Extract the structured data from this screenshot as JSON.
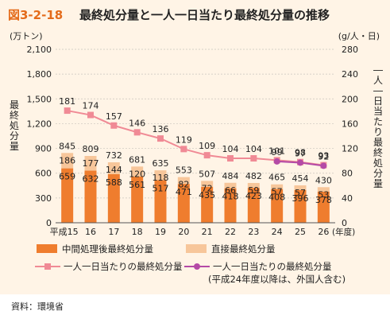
{
  "figure": {
    "label": "図3-2-18",
    "title": "最終処分量と一人一日当たり最終処分量の推移",
    "source": "資料：環境省"
  },
  "colors": {
    "intermediate": "#ef7d2e",
    "direct": "#f7c69a",
    "line": "#f08a95",
    "line_foreign": "#b44aa6",
    "background": "#fff4e6"
  },
  "chart_data": {
    "type": "bar",
    "categories": [
      "平成15",
      "16",
      "17",
      "18",
      "19",
      "20",
      "21",
      "22",
      "23",
      "24",
      "25",
      "26"
    ],
    "xlabel_suffix": "(年度)",
    "y_left": {
      "unit": "(万トン)",
      "label": "最終処分量",
      "ylim": [
        0,
        2100
      ],
      "ticks": [
        "0",
        "300",
        "600",
        "900",
        "1,200",
        "1,500",
        "1,800",
        "2,100"
      ]
    },
    "y_right": {
      "unit": "(g/人・日)",
      "label": "一人一日当たり最終処分量",
      "ylim": [
        0,
        280
      ],
      "ticks": [
        "0",
        "40",
        "80",
        "120",
        "160",
        "200",
        "240",
        "280"
      ]
    },
    "series": [
      {
        "name": "中間処理後最終処分量",
        "values": [
          659,
          632,
          588,
          561,
          517,
          471,
          435,
          418,
          423,
          408,
          396,
          378
        ]
      },
      {
        "name": "直接最終処分量",
        "values": [
          186,
          177,
          144,
          120,
          118,
          82,
          72,
          66,
          59,
          57,
          57,
          53
        ]
      }
    ],
    "totals": [
      845,
      809,
      732,
      681,
      635,
      553,
      507,
      484,
      482,
      465,
      454,
      430
    ],
    "line": {
      "name": "一人一日当たりの最終処分量",
      "values": [
        181,
        174,
        157,
        146,
        136,
        119,
        109,
        104,
        104,
        101,
        98,
        93
      ]
    },
    "line_foreign": {
      "name": "一人一日当たりの最終処分量",
      "note": "(平成24年度以降は、外国人含む)",
      "values": [
        null,
        null,
        null,
        null,
        null,
        null,
        null,
        null,
        null,
        99,
        97,
        92
      ]
    },
    "legend": [
      {
        "label": "中間処理後最終処分量"
      },
      {
        "label": "直接最終処分量"
      },
      {
        "label": "一人一日当たりの最終処分量"
      },
      {
        "label": "一人一日当たりの最終処分量"
      }
    ],
    "legend_note": "(平成24年度以降は、外国人含む)",
    "grid": true,
    "legend_position": "bottom"
  }
}
